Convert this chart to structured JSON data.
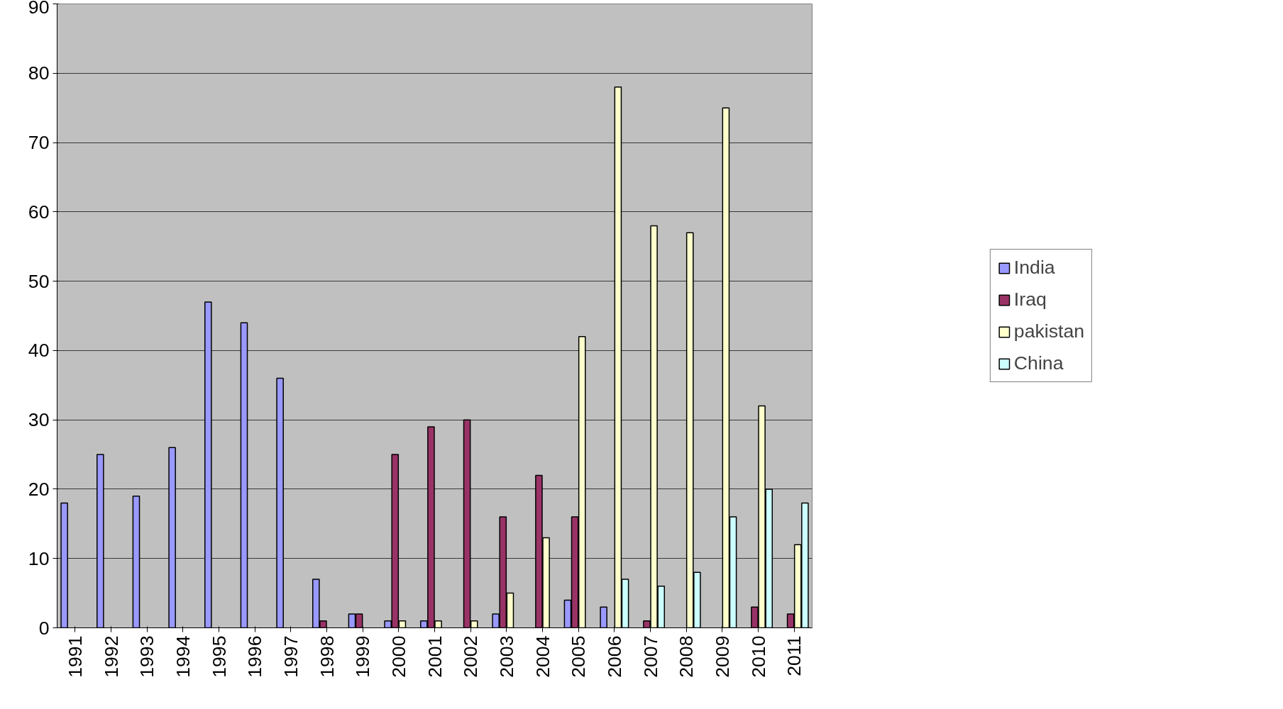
{
  "chart_data": {
    "type": "bar",
    "categories": [
      "1991",
      "1992",
      "1993",
      "1994",
      "1995",
      "1996",
      "1997",
      "1998",
      "1999",
      "2000",
      "2001",
      "2002",
      "2003",
      "2004",
      "2005",
      "2006",
      "2007",
      "2008",
      "2009",
      "2010",
      "2011"
    ],
    "series": [
      {
        "name": "India",
        "color": "#9999ff",
        "values": [
          18,
          25,
          19,
          26,
          47,
          44,
          36,
          7,
          2,
          1,
          1,
          null,
          2,
          null,
          4,
          3,
          null,
          null,
          null,
          null,
          null
        ]
      },
      {
        "name": "Iraq",
        "color": "#993366",
        "values": [
          null,
          null,
          null,
          null,
          null,
          null,
          null,
          1,
          2,
          25,
          29,
          30,
          16,
          22,
          16,
          null,
          1,
          null,
          null,
          3,
          2
        ]
      },
      {
        "name": "pakistan",
        "color": "#ffffcc",
        "values": [
          null,
          null,
          null,
          null,
          null,
          null,
          null,
          null,
          null,
          1,
          1,
          1,
          5,
          13,
          42,
          78,
          58,
          57,
          75,
          32,
          12
        ]
      },
      {
        "name": "China",
        "color": "#ccffff",
        "values": [
          null,
          null,
          null,
          null,
          null,
          null,
          null,
          null,
          null,
          null,
          null,
          null,
          null,
          null,
          null,
          7,
          6,
          8,
          16,
          20,
          18
        ]
      }
    ],
    "ylim": [
      0,
      90
    ],
    "yticks": [
      0,
      10,
      20,
      30,
      40,
      50,
      60,
      70,
      80,
      90
    ],
    "grid": "y",
    "legend": "right"
  }
}
